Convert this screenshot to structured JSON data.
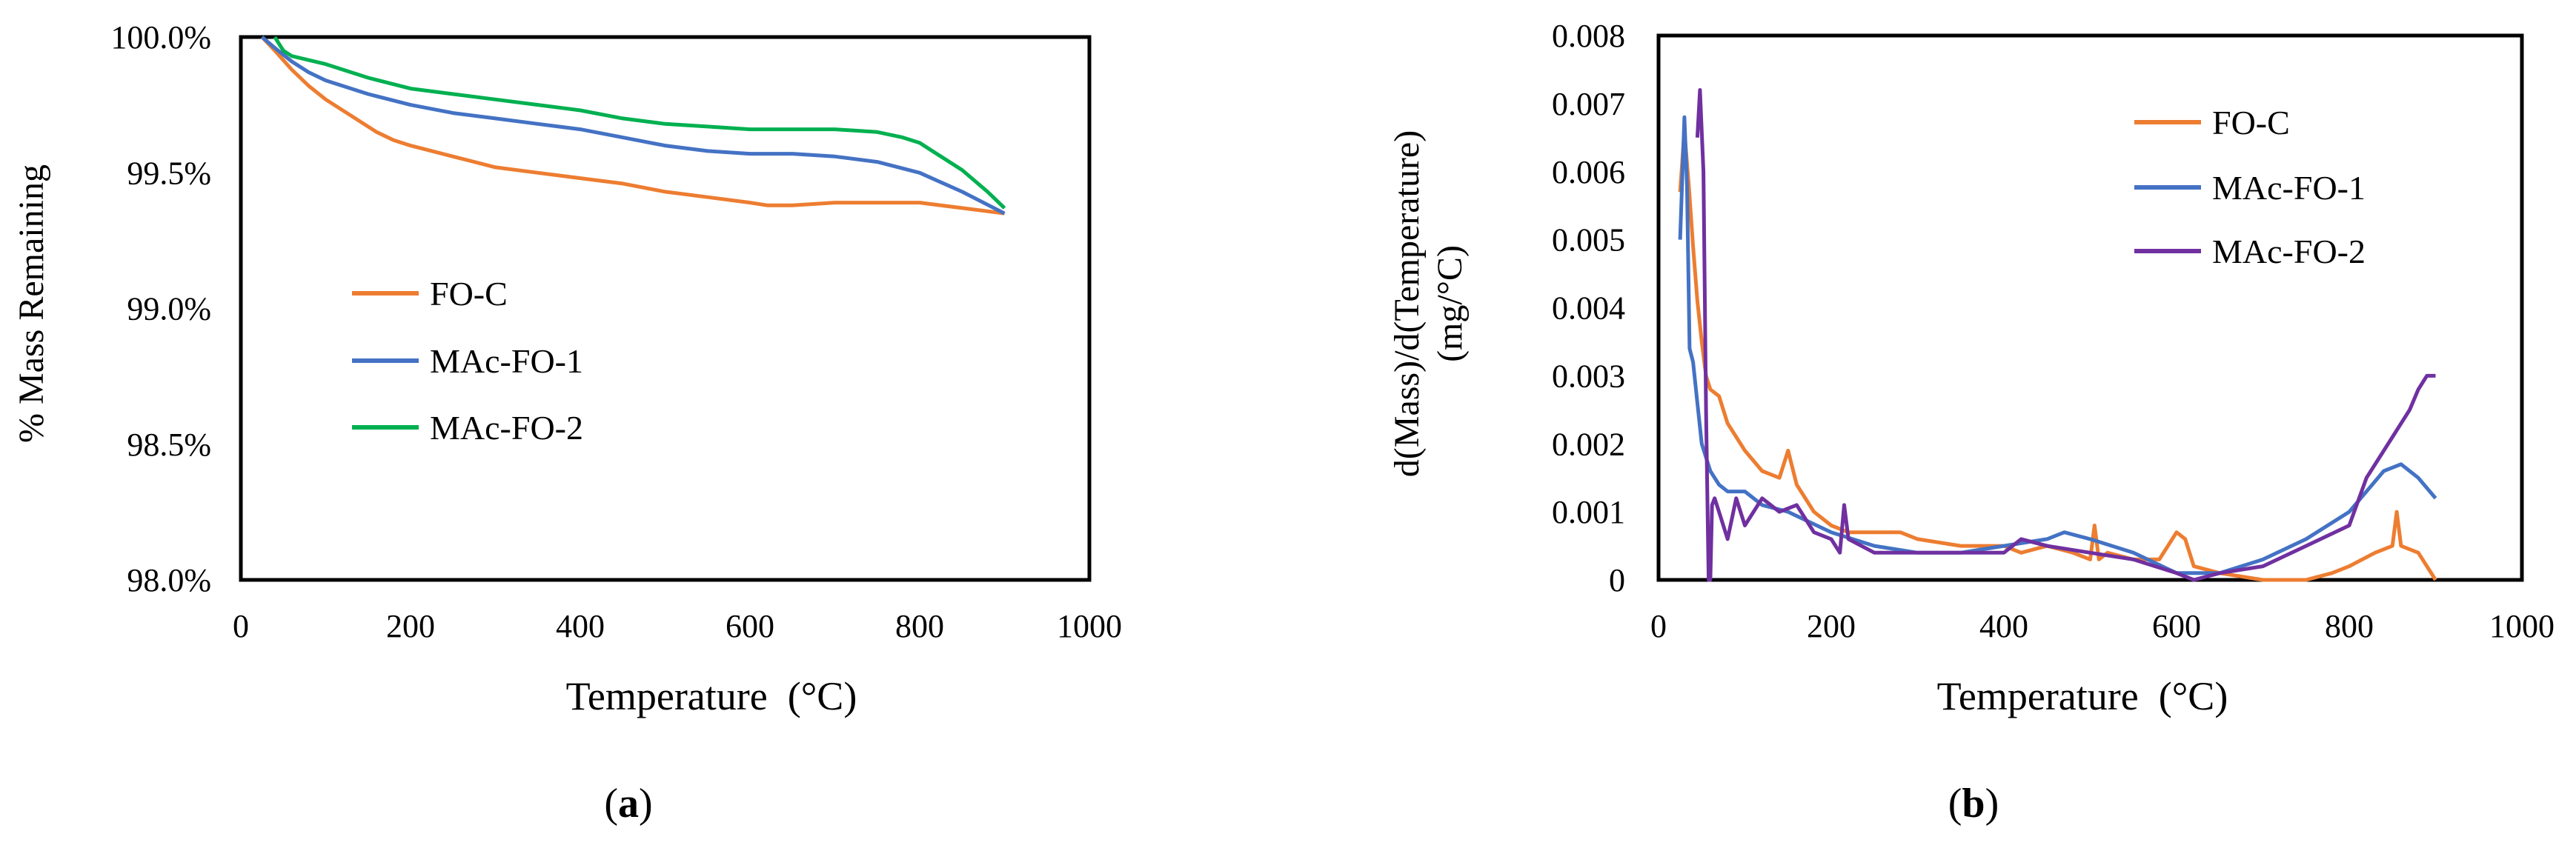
{
  "figure": {
    "panel_labels": [
      "(a)",
      "(b)"
    ],
    "panel_letters": [
      "a",
      "b"
    ]
  },
  "chart_data": [
    {
      "type": "line",
      "panel": "a",
      "xlabel": "Temperature  (°C)",
      "ylabel": "% Mass Remaining",
      "xlim": [
        0,
        1000
      ],
      "ylim": [
        98.0,
        100.0
      ],
      "x_ticks": [
        "0",
        "200",
        "400",
        "600",
        "800",
        "1000"
      ],
      "y_ticks": [
        "98.0%",
        "98.5%",
        "99.0%",
        "99.5%",
        "100.0%"
      ],
      "y_tick_values": [
        98.0,
        98.5,
        99.0,
        99.5,
        100.0
      ],
      "grid": false,
      "legend_position": "left-lower",
      "series": [
        {
          "name": "FO-C",
          "color": "#ED7D31",
          "x": [
            25,
            40,
            60,
            80,
            100,
            130,
            160,
            180,
            200,
            250,
            300,
            350,
            400,
            450,
            500,
            550,
            600,
            620,
            650,
            700,
            750,
            800,
            850,
            900
          ],
          "y": [
            100.0,
            99.95,
            99.88,
            99.82,
            99.77,
            99.71,
            99.65,
            99.62,
            99.6,
            99.56,
            99.52,
            99.5,
            99.48,
            99.46,
            99.43,
            99.41,
            99.39,
            99.38,
            99.38,
            99.39,
            99.39,
            99.39,
            99.37,
            99.35
          ]
        },
        {
          "name": "MAc-FO-1",
          "color": "#4472C4",
          "x": [
            25,
            40,
            60,
            80,
            100,
            150,
            200,
            250,
            300,
            350,
            400,
            450,
            500,
            550,
            600,
            650,
            700,
            750,
            800,
            850,
            900
          ],
          "y": [
            100.0,
            99.96,
            99.91,
            99.87,
            99.84,
            99.79,
            99.75,
            99.72,
            99.7,
            99.68,
            99.66,
            99.63,
            99.6,
            99.58,
            99.57,
            99.57,
            99.56,
            99.54,
            99.5,
            99.43,
            99.35
          ]
        },
        {
          "name": "MAc-FO-2",
          "color": "#00B050",
          "x": [
            40,
            50,
            60,
            100,
            150,
            200,
            250,
            300,
            350,
            400,
            450,
            500,
            550,
            600,
            650,
            700,
            750,
            780,
            800,
            820,
            850,
            880,
            900
          ],
          "y": [
            100.0,
            99.95,
            99.93,
            99.9,
            99.85,
            99.81,
            99.79,
            99.77,
            99.75,
            99.73,
            99.7,
            99.68,
            99.67,
            99.66,
            99.66,
            99.66,
            99.65,
            99.63,
            99.61,
            99.57,
            99.51,
            99.43,
            99.37
          ]
        }
      ]
    },
    {
      "type": "line",
      "panel": "b",
      "xlabel": "Temperature  (°C)",
      "ylabel": "d(Mass)/d(Temperature)",
      "ylabel_unit": "(mg/°C)",
      "xlim": [
        0,
        1000
      ],
      "ylim": [
        0,
        0.008
      ],
      "x_ticks": [
        "0",
        "200",
        "400",
        "600",
        "800",
        "1000"
      ],
      "y_ticks": [
        "0",
        "0.001",
        "0.002",
        "0.003",
        "0.004",
        "0.005",
        "0.006",
        "0.007",
        "0.008"
      ],
      "y_tick_values": [
        0,
        0.001,
        0.002,
        0.003,
        0.004,
        0.005,
        0.006,
        0.007,
        0.008
      ],
      "grid": false,
      "legend_position": "top-right",
      "series": [
        {
          "name": "FO-C",
          "color": "#ED7D31",
          "x": [
            25,
            30,
            35,
            40,
            45,
            50,
            55,
            60,
            70,
            80,
            100,
            120,
            140,
            150,
            160,
            180,
            200,
            220,
            250,
            280,
            300,
            350,
            400,
            420,
            450,
            480,
            500,
            505,
            510,
            520,
            550,
            580,
            600,
            610,
            620,
            650,
            700,
            750,
            780,
            800,
            830,
            850,
            855,
            860,
            880,
            900
          ],
          "y": [
            0.0057,
            0.0066,
            0.0058,
            0.0049,
            0.0041,
            0.0035,
            0.003,
            0.0028,
            0.0027,
            0.0023,
            0.0019,
            0.0016,
            0.0015,
            0.0019,
            0.0014,
            0.001,
            0.0008,
            0.0007,
            0.0007,
            0.0007,
            0.0006,
            0.0005,
            0.0005,
            0.0004,
            0.0005,
            0.0004,
            0.0003,
            0.0008,
            0.0003,
            0.0004,
            0.0003,
            0.0003,
            0.0007,
            0.0006,
            0.0002,
            0.0001,
            0.0,
            0.0,
            0.0001,
            0.0002,
            0.0004,
            0.0005,
            0.001,
            0.0005,
            0.0004,
            0.0
          ]
        },
        {
          "name": "MAc-FO-1",
          "color": "#4472C4",
          "x": [
            25,
            30,
            33,
            36,
            40,
            45,
            50,
            55,
            60,
            70,
            80,
            100,
            120,
            150,
            200,
            250,
            300,
            350,
            400,
            450,
            470,
            500,
            550,
            600,
            650,
            700,
            750,
            800,
            840,
            860,
            880,
            900
          ],
          "y": [
            0.005,
            0.0068,
            0.0058,
            0.0034,
            0.0032,
            0.0026,
            0.002,
            0.0018,
            0.0016,
            0.0014,
            0.0013,
            0.0013,
            0.0011,
            0.001,
            0.0007,
            0.0005,
            0.0004,
            0.0004,
            0.0005,
            0.0006,
            0.0007,
            0.0006,
            0.0004,
            0.0001,
            0.0001,
            0.0003,
            0.0006,
            0.001,
            0.0016,
            0.0017,
            0.0015,
            0.0012
          ]
        },
        {
          "name": "MAc-FO-2",
          "color": "#7030A0",
          "x": [
            45,
            48,
            52,
            55,
            58,
            60,
            62,
            65,
            70,
            80,
            90,
            100,
            120,
            140,
            160,
            180,
            200,
            210,
            215,
            220,
            250,
            300,
            350,
            400,
            420,
            450,
            500,
            550,
            600,
            620,
            650,
            700,
            750,
            800,
            820,
            850,
            870,
            880,
            890,
            900
          ],
          "y": [
            0.0065,
            0.0072,
            0.006,
            0.0025,
            0.0,
            0.0,
            0.0011,
            0.0012,
            0.001,
            0.0006,
            0.0012,
            0.0008,
            0.0012,
            0.001,
            0.0011,
            0.0007,
            0.0006,
            0.0004,
            0.0011,
            0.0006,
            0.0004,
            0.0004,
            0.0004,
            0.0004,
            0.0006,
            0.0005,
            0.0004,
            0.0003,
            0.0001,
            0.0,
            0.0001,
            0.0002,
            0.0005,
            0.0008,
            0.0015,
            0.0021,
            0.0025,
            0.0028,
            0.003,
            0.003
          ]
        }
      ]
    }
  ]
}
